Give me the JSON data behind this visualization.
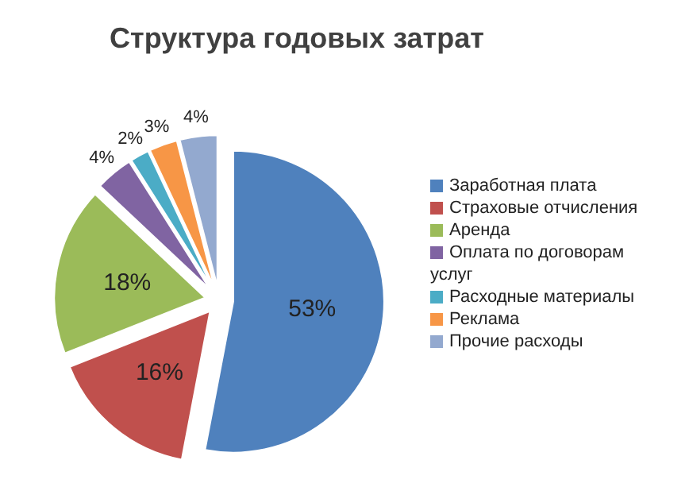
{
  "chart_data": {
    "type": "pie",
    "title": "Структура годовых затрат",
    "categories": [
      "Заработная плата",
      "Страховые отчисления",
      "Аренда",
      "Оплата по договорам услуг",
      "Расходные материалы",
      "Реклама",
      "Прочие расходы"
    ],
    "values": [
      53,
      16,
      18,
      4,
      2,
      3,
      4
    ],
    "value_labels": [
      "53%",
      "16%",
      "18%",
      "4%",
      "2%",
      "3%",
      "4%"
    ],
    "colors": [
      "#4f81bd",
      "#c0504d",
      "#9bbb59",
      "#8064a2",
      "#4bacc6",
      "#f79646",
      "#93a9cf"
    ],
    "legend": "right"
  }
}
